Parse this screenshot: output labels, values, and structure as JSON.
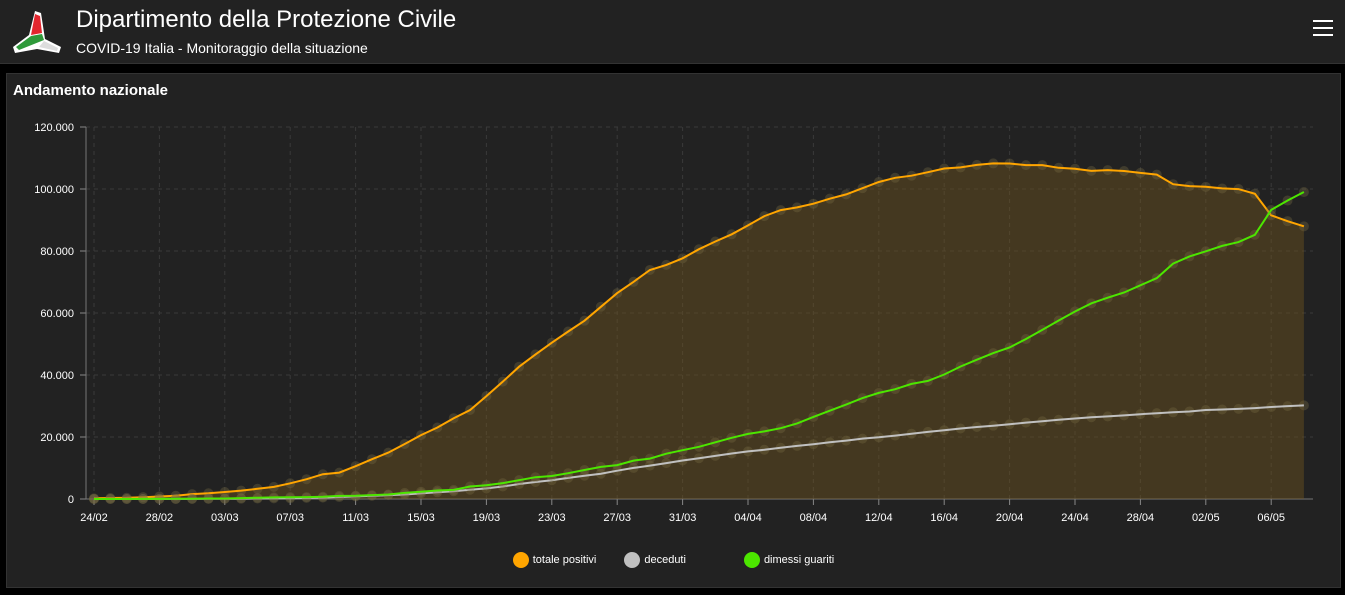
{
  "header": {
    "title": "Dipartimento della Protezione Civile",
    "subtitle": "COVID-19 Italia - Monitoraggio della situazione"
  },
  "panel": {
    "title": "Andamento nazionale"
  },
  "chart_data": {
    "type": "line",
    "title": "Andamento nazionale",
    "ylim": [
      0,
      120000
    ],
    "yticks": [
      0,
      20000,
      40000,
      60000,
      80000,
      100000,
      120000
    ],
    "ytick_labels": [
      "0",
      "20.000",
      "40.000",
      "60.000",
      "80.000",
      "100.000",
      "120.000"
    ],
    "xtick_labels": [
      "24/02",
      "28/02",
      "03/03",
      "07/03",
      "11/03",
      "15/03",
      "19/03",
      "23/03",
      "27/03",
      "31/03",
      "04/04",
      "08/04",
      "12/04",
      "16/04",
      "20/04",
      "24/04",
      "28/04",
      "02/05",
      "06/05"
    ],
    "xtick_step_days": 4,
    "x_start": "24/02",
    "x_end": "08/05",
    "legend_position": "bottom",
    "grid": true,
    "series": [
      {
        "name": "totale positivi",
        "color": "#ffa500",
        "area": true,
        "values": [
          221,
          311,
          385,
          588,
          821,
          1049,
          1577,
          1835,
          2263,
          2706,
          3296,
          3916,
          5061,
          6387,
          7985,
          8514,
          10590,
          12839,
          14955,
          17750,
          20603,
          23073,
          26062,
          28710,
          33190,
          37860,
          42681,
          46638,
          50418,
          54030,
          57521,
          62013,
          66414,
          70065,
          73880,
          75528,
          77635,
          80572,
          83049,
          85388,
          88274,
          91246,
          93187,
          94067,
          95262,
          96877,
          98273,
          100269,
          102253,
          103616,
          104291,
          105418,
          106607,
          106962,
          107771,
          108257,
          108237,
          107709,
          107699,
          106848,
          106527,
          105847,
          106103,
          105813,
          105205,
          104657,
          101551,
          100943,
          100704,
          100179,
          99980,
          98467,
          91528,
          89624,
          87961
        ]
      },
      {
        "name": "deceduti",
        "color": "#c0c0c0",
        "area": false,
        "values": [
          7,
          10,
          12,
          17,
          21,
          29,
          34,
          52,
          79,
          107,
          148,
          197,
          233,
          366,
          463,
          631,
          827,
          1016,
          1266,
          1441,
          1809,
          2158,
          2503,
          2978,
          3405,
          4032,
          4825,
          5476,
          6077,
          6820,
          7503,
          8165,
          9134,
          10023,
          10779,
          11591,
          12428,
          13155,
          13915,
          14681,
          15362,
          15887,
          16523,
          17127,
          17669,
          18279,
          18849,
          19468,
          19899,
          20465,
          21067,
          21645,
          22170,
          22745,
          23227,
          23660,
          24114,
          24648,
          25085,
          25549,
          25969,
          26384,
          26644,
          26977,
          27359,
          27682,
          27967,
          28236,
          28710,
          28884,
          29079,
          29315,
          29684,
          29958,
          30201
        ]
      },
      {
        "name": "dimessi guariti",
        "color": "#4ce600",
        "area": false,
        "values": [
          1,
          1,
          3,
          45,
          46,
          50,
          83,
          149,
          160,
          276,
          414,
          523,
          589,
          622,
          724,
          1004,
          1045,
          1258,
          1439,
          1966,
          2335,
          2749,
          2941,
          4025,
          4440,
          5129,
          6072,
          7024,
          7432,
          8326,
          9362,
          10361,
          10950,
          12384,
          13030,
          14620,
          15729,
          16847,
          18278,
          19758,
          20996,
          21815,
          22837,
          24392,
          26491,
          28470,
          30455,
          32534,
          34211,
          35435,
          37130,
          38092,
          40164,
          42727,
          44927,
          47055,
          48877,
          51600,
          54543,
          57576,
          60498,
          63120,
          64928,
          66624,
          68941,
          71252,
          75945,
          78249,
          79914,
          81654,
          82879,
          85231,
          93245,
          96276,
          99023
        ]
      }
    ]
  }
}
